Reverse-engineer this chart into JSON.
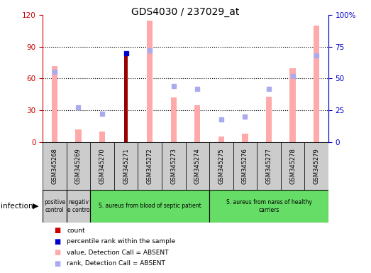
{
  "title": "GDS4030 / 237029_at",
  "samples": [
    "GSM345268",
    "GSM345269",
    "GSM345270",
    "GSM345271",
    "GSM345272",
    "GSM345273",
    "GSM345274",
    "GSM345275",
    "GSM345276",
    "GSM345277",
    "GSM345278",
    "GSM345279"
  ],
  "value_absent": [
    72,
    12,
    10,
    null,
    115,
    42,
    35,
    5,
    8,
    43,
    70,
    110
  ],
  "count_bar": [
    null,
    null,
    null,
    83,
    null,
    null,
    null,
    null,
    null,
    null,
    null,
    null
  ],
  "percentile_square": [
    null,
    null,
    null,
    70,
    null,
    null,
    null,
    null,
    null,
    null,
    null,
    null
  ],
  "rank_absent_pct": [
    55,
    27,
    22,
    null,
    72,
    44,
    42,
    18,
    20,
    42,
    52,
    68
  ],
  "ylim_left": [
    0,
    120
  ],
  "ylim_right": [
    0,
    100
  ],
  "yticks_left": [
    0,
    30,
    60,
    90,
    120
  ],
  "yticks_right": [
    0,
    25,
    50,
    75,
    100
  ],
  "yticklabels_right": [
    "0",
    "25",
    "50",
    "75",
    "100%"
  ],
  "left_axis_color": "#cc0000",
  "right_axis_color": "#0000cc",
  "bar_value_color": "#ffaaaa",
  "bar_count_color": "#990000",
  "square_rank_color": "#aaaaee",
  "square_percentile_color": "#0000cc",
  "groups": [
    {
      "label": "positive\ncontrol",
      "color": "#cccccc",
      "start": 0,
      "end": 1
    },
    {
      "label": "negativ\ne contro",
      "color": "#cccccc",
      "start": 1,
      "end": 2
    },
    {
      "label": "S. aureus from blood of septic patient",
      "color": "#66dd66",
      "start": 2,
      "end": 7
    },
    {
      "label": "S. aureus from nares of healthy\ncarriers",
      "color": "#66dd66",
      "start": 7,
      "end": 12
    }
  ],
  "infection_label": "infection",
  "legend_items": [
    {
      "label": "count",
      "color": "#cc0000"
    },
    {
      "label": "percentile rank within the sample",
      "color": "#0000cc"
    },
    {
      "label": "value, Detection Call = ABSENT",
      "color": "#ffaaaa"
    },
    {
      "label": "rank, Detection Call = ABSENT",
      "color": "#aaaaee"
    }
  ]
}
